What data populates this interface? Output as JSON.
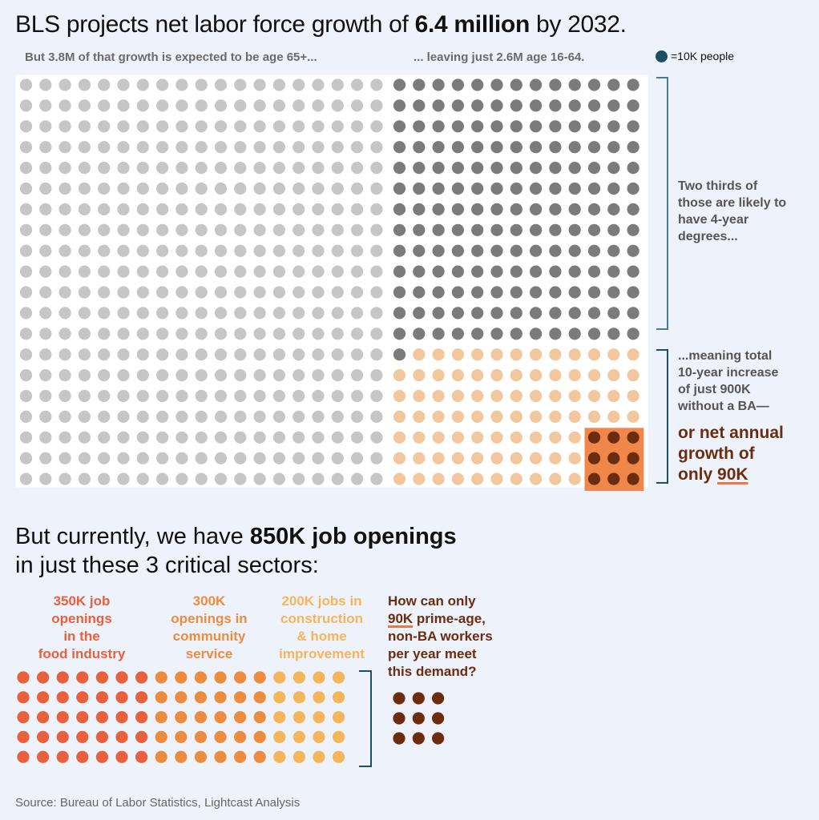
{
  "header": {
    "title_pre": "BLS projects net labor force growth of ",
    "title_bold": "6.4 million",
    "title_post": " by 2032."
  },
  "subtitle_left": "But 3.8M of that growth is expected to be age 65+...",
  "subtitle_right": "... leaving just 2.6M age 16-64.",
  "legend": {
    "label": "=10K people",
    "color": "#1d4e66"
  },
  "note_degrees": [
    "Two thirds of",
    "those are likely to",
    "have 4-year",
    "degrees..."
  ],
  "note_meaning": [
    "...meaning total",
    "10-year increase",
    "of just 900K",
    "without a BA—"
  ],
  "note_big": {
    "line1": "or net annual",
    "line2": "growth of",
    "line3_pre": "only ",
    "line3_ul": "90K"
  },
  "section2": {
    "line1_pre": "But currently, we have ",
    "line1_bold": "850K job openings",
    "line2": "in just these 3 critical sectors:"
  },
  "sectors": [
    {
      "lines": [
        "350K job",
        "openings",
        "in the",
        "food industry"
      ],
      "color": "#e8603c"
    },
    {
      "lines": [
        "300K",
        "openings in",
        "community",
        "service"
      ],
      "color": "#ec8c3e"
    },
    {
      "lines": [
        "200K jobs in",
        "construction",
        "& home",
        "improvement"
      ],
      "color": "#f4b55b"
    }
  ],
  "question": {
    "line1": "How can only",
    "ul": "90K",
    "line2_rest": " prime-age,",
    "line3": "non-BA workers",
    "line4": "per year meet",
    "line5": "this demand?"
  },
  "source": "Source: Bureau of Labor Statistics, Lightcast Analysis",
  "colors": {
    "age65": "#c6c6c6",
    "ba": "#7b7b7b",
    "nonba": "#f3c79d",
    "annual": "#6b2c10",
    "annual_bg": "#f0874a",
    "bracket": "#4a7a99",
    "bracket_dark": "#1d4e66"
  },
  "chart_data": [
    {
      "type": "waffle",
      "unit": "10K people",
      "total": 6.4,
      "units": "million",
      "series": [
        {
          "name": "age 65+",
          "value": 3.8
        },
        {
          "name": "age 16-64 with 4-year degrees",
          "value": 1.7
        },
        {
          "name": "age 16-64 without a BA",
          "value": 0.9
        },
        {
          "name": "net annual growth without a BA",
          "value": 0.09
        }
      ]
    },
    {
      "type": "waffle",
      "unit": "10K job openings",
      "total": 850000,
      "categories": [
        "food industry",
        "community service",
        "construction & home improvement"
      ],
      "values": [
        350000,
        300000,
        200000
      ],
      "comparison": {
        "name": "prime-age non-BA workers per year",
        "value": 90000
      }
    }
  ]
}
